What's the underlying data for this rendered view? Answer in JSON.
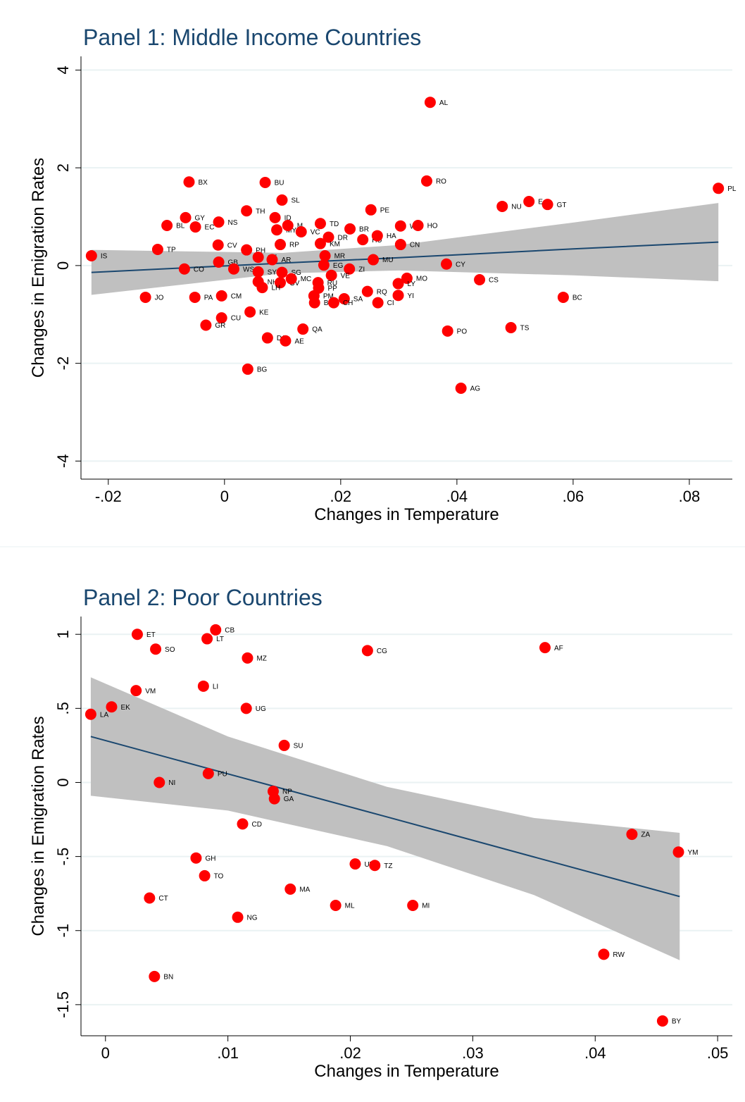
{
  "chart_data": [
    {
      "type": "scatter",
      "title": "Panel 1: Middle Income Countries",
      "x_label": "Changes in Temperature",
      "y_label": "Changes in Emigration Rates",
      "xlim": [
        -0.0247,
        0.0874
      ],
      "ylim": [
        -4.37,
        4.28
      ],
      "xticks": [
        {
          "value": -0.02,
          "label": "-.02"
        },
        0,
        {
          "value": 0.02,
          "label": ".02"
        },
        {
          "value": 0.04,
          "label": ".04"
        },
        {
          "value": 0.06,
          "label": ".06"
        },
        {
          "value": 0.08,
          "label": ".08"
        }
      ],
      "yticks": [
        -4,
        -2,
        0,
        2,
        4
      ],
      "grid": true,
      "points": {
        "color": "#ff0000",
        "labels": [
          "AL",
          "RO",
          "BX",
          "BU",
          "SL",
          "PL",
          "GT",
          "E",
          "NU",
          "TH",
          "PE",
          "GY",
          "BL",
          "EC",
          "NS",
          "ID",
          "MY",
          "M",
          "VC",
          "TD",
          "BR",
          "WZ",
          "HO",
          "DR",
          "HU",
          "HA",
          "CN",
          "CV",
          "RP",
          "KM",
          "TP",
          "IS",
          "PH",
          "CE",
          "AR",
          "MR",
          "MU",
          "GB",
          "CY",
          "CO",
          "WS",
          "SY",
          "EG",
          "ZI",
          "SG",
          "VE",
          "MO",
          "LY",
          "CS",
          "NH",
          "GV",
          "MC",
          "RU",
          "PP",
          "LH",
          "PM",
          "YI",
          "RQ",
          "SA",
          "CM",
          "JO",
          "PA",
          "BC",
          "B",
          "CH",
          "CI",
          "KE",
          "CU",
          "GR",
          "QA",
          "TS",
          "PO",
          "DJ",
          "AE",
          "BG",
          "AG"
        ],
        "x": [
          0.0354,
          0.0348,
          -0.0061,
          0.007,
          0.0099,
          0.085,
          0.0556,
          0.0524,
          0.0478,
          0.0038,
          0.0252,
          -0.0067,
          -0.0099,
          -0.005,
          -0.001,
          0.0087,
          0.009,
          0.0109,
          0.0132,
          0.0165,
          0.0216,
          0.0303,
          0.0333,
          0.0179,
          0.0238,
          0.0263,
          0.0303,
          -0.0011,
          0.0096,
          0.0165,
          -0.0115,
          -0.0229,
          0.0038,
          0.0058,
          0.0082,
          0.0173,
          0.0256,
          -0.001,
          0.0382,
          -0.0069,
          0.0016,
          0.0058,
          0.0171,
          0.0215,
          0.0099,
          0.0184,
          0.0314,
          0.0299,
          0.0439,
          0.0058,
          0.0096,
          0.0115,
          0.0161,
          0.0162,
          0.0065,
          0.0154,
          0.0299,
          0.0246,
          0.0206,
          -0.0005,
          -0.0136,
          -0.0051,
          0.0583,
          0.0155,
          0.0188,
          0.0264,
          0.0044,
          -0.0005,
          -0.0032,
          0.0135,
          0.0493,
          0.0384,
          0.0074,
          0.0105,
          0.004,
          0.0407
        ],
        "y": [
          3.34,
          1.73,
          1.71,
          1.7,
          1.34,
          1.58,
          1.25,
          1.31,
          1.21,
          1.12,
          1.14,
          0.98,
          0.82,
          0.79,
          0.89,
          0.98,
          0.73,
          0.82,
          0.69,
          0.86,
          0.75,
          0.81,
          0.82,
          0.58,
          0.53,
          0.61,
          0.43,
          0.42,
          0.43,
          0.45,
          0.33,
          0.2,
          0.32,
          0.17,
          0.12,
          0.2,
          0.12,
          0.07,
          0.03,
          -0.07,
          -0.07,
          -0.13,
          0.01,
          -0.07,
          -0.14,
          -0.2,
          -0.26,
          -0.37,
          -0.29,
          -0.33,
          -0.35,
          -0.27,
          -0.35,
          -0.46,
          -0.45,
          -0.62,
          -0.61,
          -0.53,
          -0.68,
          -0.62,
          -0.65,
          -0.65,
          -0.65,
          -0.76,
          -0.76,
          -0.76,
          -0.95,
          -1.07,
          -1.22,
          -1.3,
          -1.27,
          -1.34,
          -1.48,
          -1.54,
          -2.12,
          -2.51
        ]
      },
      "fit": {
        "color": "#1a476f",
        "band_color": "#c0c0c0",
        "x": [
          -0.0229,
          0.01,
          0.03,
          0.06,
          0.085
        ],
        "y": [
          -0.14,
          0.05,
          0.16,
          0.34,
          0.48
        ],
        "ci_low": [
          -0.6,
          -0.16,
          -0.1,
          -0.2,
          -0.32
        ],
        "ci_high": [
          0.32,
          0.26,
          0.42,
          0.88,
          1.28
        ]
      }
    },
    {
      "type": "scatter",
      "title": "Panel 2: Poor Countries",
      "x_label": "Changes in Temperature",
      "y_label": "Changes in Emigration Rates",
      "xlim": [
        -0.002,
        0.0512
      ],
      "ylim": [
        -1.71,
        1.12
      ],
      "xticks": [
        0,
        {
          "value": 0.01,
          "label": ".01"
        },
        {
          "value": 0.02,
          "label": ".02"
        },
        {
          "value": 0.03,
          "label": ".03"
        },
        {
          "value": 0.04,
          "label": ".04"
        },
        {
          "value": 0.05,
          "label": ".05"
        }
      ],
      "yticks": [
        -1.5,
        -1,
        {
          "value": -0.5,
          "label": "-.5"
        },
        0,
        {
          "value": 0.5,
          "label": ".5"
        },
        1
      ],
      "grid": true,
      "points": {
        "color": "#ff0000",
        "labels": [
          "ET",
          "CB",
          "LT",
          "SO",
          "MZ",
          "CG",
          "AF",
          "VM",
          "LI",
          "EK",
          "LA",
          "UG",
          "SU",
          "NI",
          "PU",
          "NP",
          "GA",
          "CD",
          "ZA",
          "YM",
          "GH",
          "UV",
          "TZ",
          "TO",
          "MA",
          "CT",
          "ML",
          "MI",
          "NG",
          "RW",
          "BN",
          "BY"
        ],
        "x": [
          0.0026,
          0.009,
          0.0083,
          0.0041,
          0.0116,
          0.0214,
          0.0359,
          0.0025,
          0.008,
          0.0005,
          -0.0012,
          0.0115,
          0.0146,
          0.0044,
          0.0084,
          0.0137,
          0.0138,
          0.0112,
          0.043,
          0.0468,
          0.0074,
          0.0204,
          0.022,
          0.0081,
          0.0151,
          0.0036,
          0.0188,
          0.0251,
          0.0108,
          0.0407,
          0.004,
          0.0455
        ],
        "y": [
          1.0,
          1.03,
          0.97,
          0.9,
          0.84,
          0.89,
          0.91,
          0.62,
          0.65,
          0.51,
          0.46,
          0.5,
          0.25,
          0.0,
          0.06,
          -0.06,
          -0.11,
          -0.28,
          -0.35,
          -0.47,
          -0.51,
          -0.55,
          -0.56,
          -0.63,
          -0.72,
          -0.78,
          -0.83,
          -0.83,
          -0.91,
          -1.16,
          -1.31,
          -1.61
        ]
      },
      "fit": {
        "color": "#1a476f",
        "band_color": "#c0c0c0",
        "x": [
          -0.0012,
          0.01,
          0.023,
          0.035,
          0.0469
        ],
        "y": [
          0.31,
          0.058,
          -0.233,
          -0.503,
          -0.77
        ],
        "ci_low": [
          -0.09,
          -0.19,
          -0.43,
          -0.76,
          -1.2
        ],
        "ci_high": [
          0.71,
          0.31,
          -0.03,
          -0.24,
          -0.34
        ]
      }
    }
  ]
}
